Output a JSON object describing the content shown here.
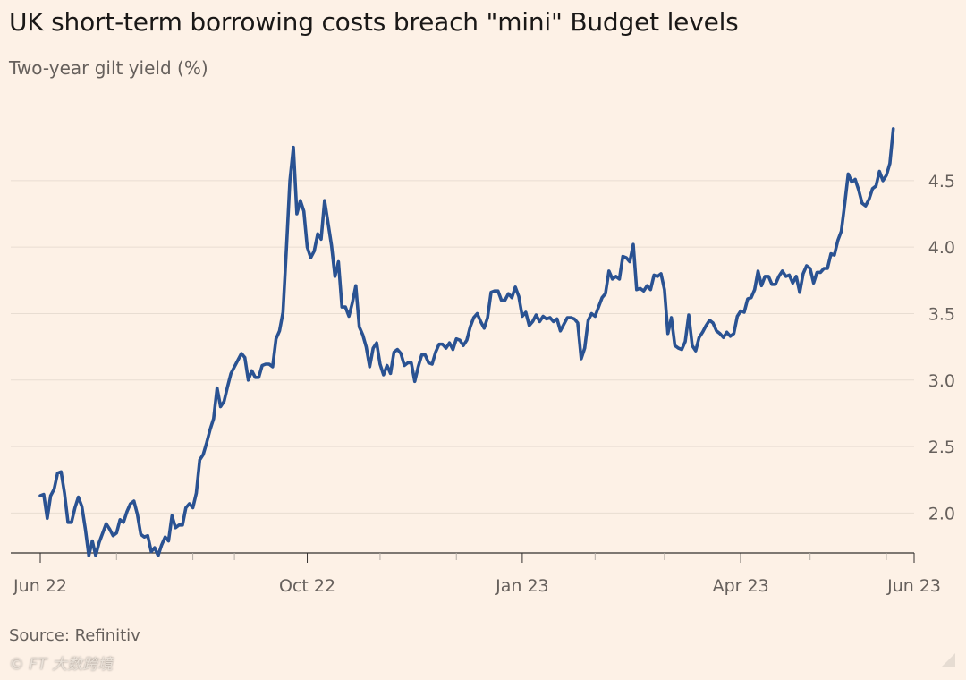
{
  "title": "UK short-term borrowing costs breach \"mini\" Budget levels",
  "subtitle": "Two-year gilt yield (%)",
  "source": "Source: Refinitiv",
  "credit": "© FT  大数跨境",
  "colors": {
    "background": "#fdf1e6",
    "line": "#2a5292",
    "grid": "#e8ddd2",
    "axis": "#33302e",
    "text": "#66605c"
  },
  "chart_data": {
    "type": "line",
    "title": "UK short-term borrowing costs breach \"mini\" Budget levels",
    "subtitle": "Two-year gilt yield (%)",
    "xlabel": "",
    "ylabel": "Two-year gilt yield (%)",
    "ylim": [
      1.7,
      4.95
    ],
    "xlim": [
      0,
      252
    ],
    "y_ticks": [
      {
        "value": 2.0,
        "label": "2.0"
      },
      {
        "value": 2.5,
        "label": "2.5"
      },
      {
        "value": 3.0,
        "label": "3.0"
      },
      {
        "value": 3.5,
        "label": "3.5"
      },
      {
        "value": 4.0,
        "label": "4.0"
      },
      {
        "value": 4.5,
        "label": "4.5"
      }
    ],
    "x_ticks": [
      {
        "day": 0,
        "label": "Jun 22"
      },
      {
        "day": 22,
        "label": ""
      },
      {
        "day": 44,
        "label": ""
      },
      {
        "day": 56,
        "label": ""
      },
      {
        "day": 77,
        "label": "Oct 22"
      },
      {
        "day": 98,
        "label": ""
      },
      {
        "day": 120,
        "label": ""
      },
      {
        "day": 139,
        "label": "Jan 23"
      },
      {
        "day": 160,
        "label": ""
      },
      {
        "day": 180,
        "label": ""
      },
      {
        "day": 202,
        "label": "Apr 23"
      },
      {
        "day": 222,
        "label": ""
      },
      {
        "day": 244,
        "label": ""
      },
      {
        "day": 252,
        "label": "Jun 23"
      }
    ],
    "series": [
      {
        "name": "Two-year gilt yield",
        "points": [
          [
            0,
            2.13
          ],
          [
            1,
            2.14
          ],
          [
            2,
            1.96
          ],
          [
            3,
            2.13
          ],
          [
            4,
            2.18
          ],
          [
            5,
            2.3
          ],
          [
            6,
            2.31
          ],
          [
            7,
            2.15
          ],
          [
            8,
            1.93
          ],
          [
            9,
            1.93
          ],
          [
            10,
            2.04
          ],
          [
            11,
            2.12
          ],
          [
            12,
            2.05
          ],
          [
            13,
            1.88
          ],
          [
            14,
            1.68
          ],
          [
            15,
            1.79
          ],
          [
            16,
            1.68
          ],
          [
            17,
            1.78
          ],
          [
            18,
            1.85
          ],
          [
            19,
            1.92
          ],
          [
            20,
            1.88
          ],
          [
            21,
            1.83
          ],
          [
            22,
            1.85
          ],
          [
            23,
            1.95
          ],
          [
            24,
            1.93
          ],
          [
            25,
            2.01
          ],
          [
            26,
            2.07
          ],
          [
            27,
            2.09
          ],
          [
            28,
            1.99
          ],
          [
            29,
            1.84
          ],
          [
            30,
            1.82
          ],
          [
            31,
            1.83
          ],
          [
            32,
            1.71
          ],
          [
            33,
            1.74
          ],
          [
            34,
            1.68
          ],
          [
            35,
            1.76
          ],
          [
            36,
            1.82
          ],
          [
            37,
            1.79
          ],
          [
            38,
            1.98
          ],
          [
            39,
            1.89
          ],
          [
            40,
            1.91
          ],
          [
            41,
            1.91
          ],
          [
            42,
            2.04
          ],
          [
            43,
            2.07
          ],
          [
            44,
            2.04
          ],
          [
            45,
            2.15
          ],
          [
            46,
            2.4
          ],
          [
            47,
            2.44
          ],
          [
            48,
            2.53
          ],
          [
            49,
            2.63
          ],
          [
            50,
            2.71
          ],
          [
            51,
            2.94
          ],
          [
            52,
            2.8
          ],
          [
            53,
            2.84
          ],
          [
            54,
            2.95
          ],
          [
            55,
            3.05
          ],
          [
            56,
            3.1
          ],
          [
            57,
            3.15
          ],
          [
            58,
            3.2
          ],
          [
            59,
            3.17
          ],
          [
            60,
            3.0
          ],
          [
            61,
            3.07
          ],
          [
            62,
            3.02
          ],
          [
            63,
            3.02
          ],
          [
            64,
            3.11
          ],
          [
            65,
            3.12
          ],
          [
            66,
            3.12
          ],
          [
            67,
            3.1
          ],
          [
            68,
            3.31
          ],
          [
            69,
            3.37
          ],
          [
            70,
            3.51
          ],
          [
            71,
            4.0
          ],
          [
            72,
            4.5
          ],
          [
            73,
            4.75
          ],
          [
            74,
            4.25
          ],
          [
            75,
            4.35
          ],
          [
            76,
            4.27
          ],
          [
            77,
            4.0
          ],
          [
            78,
            3.92
          ],
          [
            79,
            3.97
          ],
          [
            80,
            4.1
          ],
          [
            81,
            4.06
          ],
          [
            82,
            4.35
          ],
          [
            83,
            4.18
          ],
          [
            84,
            4.01
          ],
          [
            85,
            3.78
          ],
          [
            86,
            3.89
          ],
          [
            87,
            3.55
          ],
          [
            88,
            3.55
          ],
          [
            89,
            3.48
          ],
          [
            90,
            3.58
          ],
          [
            91,
            3.71
          ],
          [
            92,
            3.4
          ],
          [
            93,
            3.34
          ],
          [
            94,
            3.25
          ],
          [
            95,
            3.1
          ],
          [
            96,
            3.24
          ],
          [
            97,
            3.28
          ],
          [
            98,
            3.12
          ],
          [
            99,
            3.04
          ],
          [
            100,
            3.11
          ],
          [
            101,
            3.05
          ],
          [
            102,
            3.21
          ],
          [
            103,
            3.23
          ],
          [
            104,
            3.2
          ],
          [
            105,
            3.11
          ],
          [
            106,
            3.13
          ],
          [
            107,
            3.13
          ],
          [
            108,
            2.99
          ],
          [
            109,
            3.1
          ],
          [
            110,
            3.19
          ],
          [
            111,
            3.19
          ],
          [
            112,
            3.13
          ],
          [
            113,
            3.12
          ],
          [
            114,
            3.21
          ],
          [
            115,
            3.27
          ],
          [
            116,
            3.27
          ],
          [
            117,
            3.24
          ],
          [
            118,
            3.28
          ],
          [
            119,
            3.23
          ],
          [
            120,
            3.31
          ],
          [
            121,
            3.3
          ],
          [
            122,
            3.26
          ],
          [
            123,
            3.3
          ],
          [
            124,
            3.4
          ],
          [
            125,
            3.47
          ],
          [
            126,
            3.5
          ],
          [
            127,
            3.44
          ],
          [
            128,
            3.39
          ],
          [
            129,
            3.47
          ],
          [
            130,
            3.66
          ],
          [
            131,
            3.67
          ],
          [
            132,
            3.67
          ],
          [
            133,
            3.6
          ],
          [
            134,
            3.6
          ],
          [
            135,
            3.65
          ],
          [
            136,
            3.62
          ],
          [
            137,
            3.7
          ],
          [
            138,
            3.63
          ],
          [
            139,
            3.48
          ],
          [
            140,
            3.51
          ],
          [
            141,
            3.41
          ],
          [
            142,
            3.44
          ],
          [
            143,
            3.49
          ],
          [
            144,
            3.44
          ],
          [
            145,
            3.48
          ],
          [
            146,
            3.46
          ],
          [
            147,
            3.47
          ],
          [
            148,
            3.44
          ],
          [
            149,
            3.46
          ],
          [
            150,
            3.37
          ],
          [
            151,
            3.42
          ],
          [
            152,
            3.47
          ],
          [
            153,
            3.47
          ],
          [
            154,
            3.46
          ],
          [
            155,
            3.43
          ],
          [
            156,
            3.16
          ],
          [
            157,
            3.24
          ],
          [
            158,
            3.45
          ],
          [
            159,
            3.5
          ],
          [
            160,
            3.48
          ],
          [
            161,
            3.55
          ],
          [
            162,
            3.62
          ],
          [
            163,
            3.65
          ],
          [
            164,
            3.82
          ],
          [
            165,
            3.76
          ],
          [
            166,
            3.78
          ],
          [
            167,
            3.76
          ],
          [
            168,
            3.93
          ],
          [
            169,
            3.92
          ],
          [
            170,
            3.89
          ],
          [
            171,
            4.02
          ],
          [
            172,
            3.68
          ],
          [
            173,
            3.69
          ],
          [
            174,
            3.67
          ],
          [
            175,
            3.71
          ],
          [
            176,
            3.68
          ],
          [
            177,
            3.79
          ],
          [
            178,
            3.78
          ],
          [
            179,
            3.8
          ],
          [
            180,
            3.68
          ],
          [
            181,
            3.35
          ],
          [
            182,
            3.47
          ],
          [
            183,
            3.26
          ],
          [
            184,
            3.24
          ],
          [
            185,
            3.23
          ],
          [
            186,
            3.29
          ],
          [
            187,
            3.49
          ],
          [
            188,
            3.26
          ],
          [
            189,
            3.22
          ],
          [
            190,
            3.32
          ],
          [
            191,
            3.36
          ],
          [
            192,
            3.41
          ],
          [
            193,
            3.45
          ],
          [
            194,
            3.43
          ],
          [
            195,
            3.37
          ],
          [
            196,
            3.35
          ],
          [
            197,
            3.32
          ],
          [
            198,
            3.36
          ],
          [
            199,
            3.33
          ],
          [
            200,
            3.35
          ],
          [
            201,
            3.48
          ],
          [
            202,
            3.52
          ],
          [
            203,
            3.51
          ],
          [
            204,
            3.61
          ],
          [
            205,
            3.62
          ],
          [
            206,
            3.68
          ],
          [
            207,
            3.82
          ],
          [
            208,
            3.71
          ],
          [
            209,
            3.78
          ],
          [
            210,
            3.78
          ],
          [
            211,
            3.72
          ],
          [
            212,
            3.72
          ],
          [
            213,
            3.78
          ],
          [
            214,
            3.82
          ],
          [
            215,
            3.78
          ],
          [
            216,
            3.79
          ],
          [
            217,
            3.73
          ],
          [
            218,
            3.78
          ],
          [
            219,
            3.66
          ],
          [
            220,
            3.8
          ],
          [
            221,
            3.86
          ],
          [
            222,
            3.84
          ],
          [
            223,
            3.73
          ],
          [
            224,
            3.81
          ],
          [
            225,
            3.81
          ],
          [
            226,
            3.84
          ],
          [
            227,
            3.84
          ],
          [
            228,
            3.95
          ],
          [
            229,
            3.94
          ],
          [
            230,
            4.05
          ],
          [
            231,
            4.12
          ],
          [
            232,
            4.33
          ],
          [
            233,
            4.55
          ],
          [
            234,
            4.49
          ],
          [
            235,
            4.51
          ],
          [
            236,
            4.43
          ],
          [
            237,
            4.33
          ],
          [
            238,
            4.31
          ],
          [
            239,
            4.36
          ],
          [
            240,
            4.44
          ],
          [
            241,
            4.46
          ],
          [
            242,
            4.57
          ],
          [
            243,
            4.5
          ],
          [
            244,
            4.54
          ],
          [
            245,
            4.63
          ],
          [
            246,
            4.89
          ]
        ]
      }
    ]
  }
}
